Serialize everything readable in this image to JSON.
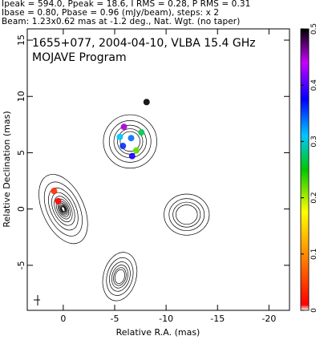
{
  "header": {
    "line1": "Ipeak = 594.0, Ppeak = 18.6, I RMS = 0.28, P RMS = 0.31",
    "line2": "Ibase = 0.80, Pbase = 0.96 (mJy/beam), steps: x 2",
    "line3": "Beam: 1.23x0.62 mas at -1.2 deg., Nat. Wgt. (no taper)"
  },
  "chart_data": {
    "type": "contour",
    "title": "1655+077, 2004-04-10, VLBA 15.4 GHz",
    "subtitle": "MOJAVE Program",
    "xlabel": "Relative R.A. (mas)",
    "ylabel": "Relative Declination (mas)",
    "xlim": [
      3.5,
      -22
    ],
    "ylim": [
      -9,
      16
    ],
    "xticks": [
      {
        "value": 0,
        "label": "0"
      },
      {
        "value": -5,
        "label": "-5"
      },
      {
        "value": -10,
        "label": "-10"
      },
      {
        "value": -15,
        "label": "-15"
      },
      {
        "value": -20,
        "label": "-20"
      }
    ],
    "yticks": [
      {
        "value": -5,
        "label": "-5"
      },
      {
        "value": 0,
        "label": "0"
      },
      {
        "value": 5,
        "label": "5"
      },
      {
        "value": 10,
        "label": "10"
      },
      {
        "value": 15,
        "label": "15"
      }
    ],
    "colorbar": {
      "range": [
        0,
        0.5
      ],
      "ticks": [
        {
          "value": 0,
          "label": "0"
        },
        {
          "value": 0.1,
          "label": "0.1"
        },
        {
          "value": 0.2,
          "label": "0.2"
        },
        {
          "value": 0.3,
          "label": "0.3"
        },
        {
          "value": 0.4,
          "label": "0.4"
        },
        {
          "value": 0.5,
          "label": "0.5"
        }
      ]
    },
    "contour_components": [
      {
        "name": "core",
        "x": 0.0,
        "y": 0.0,
        "rx": 2.0,
        "ry": 3.6,
        "levels": 12,
        "angle": -25
      },
      {
        "name": "upper-knot",
        "x": -6.5,
        "y": 6.0,
        "rx": 2.6,
        "ry": 2.6,
        "levels": 5,
        "angle": 0
      },
      {
        "name": "lower-knot",
        "x": -5.5,
        "y": -6.0,
        "rx": 1.6,
        "ry": 2.4,
        "levels": 6,
        "angle": 15
      },
      {
        "name": "right-knot",
        "x": -12.0,
        "y": -0.5,
        "rx": 2.2,
        "ry": 2.0,
        "levels": 4,
        "angle": 0
      }
    ],
    "polarization_patches": [
      {
        "x": 0.5,
        "y": 0.7,
        "value": 0.0
      },
      {
        "x": 0.9,
        "y": 1.6,
        "value": 0.03
      },
      {
        "x": -5.5,
        "y": 6.4,
        "value": 0.31
      },
      {
        "x": -5.8,
        "y": 5.6,
        "value": 0.36
      },
      {
        "x": -6.6,
        "y": 6.3,
        "value": 0.34
      },
      {
        "x": -7.1,
        "y": 5.2,
        "value": 0.22
      },
      {
        "x": -7.6,
        "y": 6.8,
        "value": 0.27
      },
      {
        "x": -5.9,
        "y": 7.3,
        "value": 0.45
      },
      {
        "x": -8.1,
        "y": 9.5,
        "value": 0.5
      },
      {
        "x": -6.7,
        "y": 4.7,
        "value": 0.38
      }
    ]
  }
}
